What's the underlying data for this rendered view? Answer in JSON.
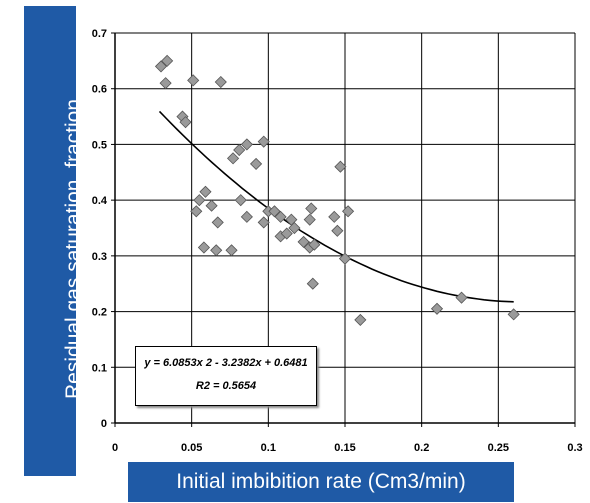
{
  "chart_data": {
    "type": "scatter",
    "xlabel": "Initial imbibition rate (Cm3/min)",
    "ylabel": "Residual gas saturation, fraction",
    "xlim": [
      0,
      0.3
    ],
    "ylim": [
      0,
      0.7
    ],
    "x_ticks": [
      "0",
      "0.05",
      "0.1",
      "0.15",
      "0.2",
      "0.25",
      "0.3"
    ],
    "y_ticks": [
      "0",
      "0.1",
      "0.2",
      "0.3",
      "0.4",
      "0.5",
      "0.6",
      "0.7"
    ],
    "grid": true,
    "marker": "diamond",
    "marker_color": "#9a9a9a",
    "points": [
      [
        0.03,
        0.64
      ],
      [
        0.034,
        0.65
      ],
      [
        0.033,
        0.61
      ],
      [
        0.044,
        0.55
      ],
      [
        0.046,
        0.54
      ],
      [
        0.051,
        0.615
      ],
      [
        0.069,
        0.612
      ],
      [
        0.053,
        0.38
      ],
      [
        0.055,
        0.4
      ],
      [
        0.059,
        0.415
      ],
      [
        0.058,
        0.315
      ],
      [
        0.063,
        0.39
      ],
      [
        0.067,
        0.36
      ],
      [
        0.066,
        0.31
      ],
      [
        0.076,
        0.31
      ],
      [
        0.077,
        0.475
      ],
      [
        0.081,
        0.49
      ],
      [
        0.086,
        0.5
      ],
      [
        0.082,
        0.4
      ],
      [
        0.086,
        0.37
      ],
      [
        0.092,
        0.465
      ],
      [
        0.097,
        0.505
      ],
      [
        0.097,
        0.36
      ],
      [
        0.1,
        0.38
      ],
      [
        0.104,
        0.38
      ],
      [
        0.108,
        0.37
      ],
      [
        0.108,
        0.335
      ],
      [
        0.112,
        0.34
      ],
      [
        0.117,
        0.35
      ],
      [
        0.115,
        0.365
      ],
      [
        0.123,
        0.325
      ],
      [
        0.127,
        0.315
      ],
      [
        0.127,
        0.365
      ],
      [
        0.128,
        0.385
      ],
      [
        0.13,
        0.32
      ],
      [
        0.129,
        0.25
      ],
      [
        0.143,
        0.37
      ],
      [
        0.145,
        0.345
      ],
      [
        0.147,
        0.46
      ],
      [
        0.15,
        0.295
      ],
      [
        0.152,
        0.38
      ],
      [
        0.16,
        0.185
      ],
      [
        0.21,
        0.205
      ],
      [
        0.226,
        0.225
      ],
      [
        0.26,
        0.195
      ]
    ],
    "trendline": {
      "type": "polynomial",
      "coefficients": [
        6.0853,
        -3.2382,
        0.6481
      ],
      "x_range": [
        0.029,
        0.26
      ]
    },
    "annotations": {
      "equation": "y = 6.0853x 2 - 3.2382x + 0.6481",
      "r_squared": "R2 = 0.5654"
    },
    "label_box_color": "#1f5aa6",
    "label_text_color": "#ffffff"
  }
}
